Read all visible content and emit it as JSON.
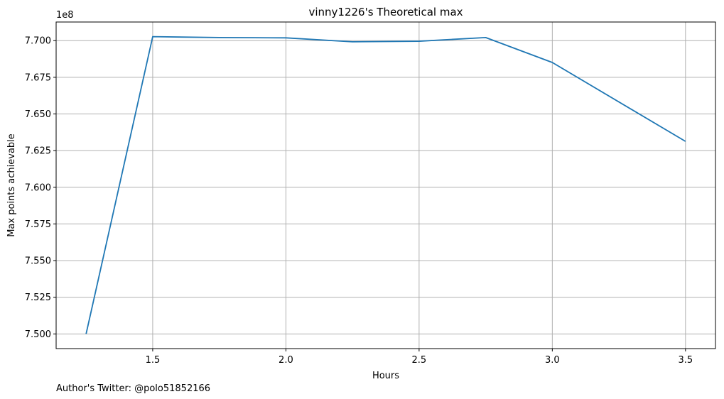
{
  "chart_data": {
    "type": "line",
    "title": "vinny1226's Theoretical max",
    "xlabel": "Hours",
    "ylabel": "Max points achievable",
    "y_offset_label": "1e8",
    "x_ticks": [
      "1.5",
      "2.0",
      "2.5",
      "3.0",
      "3.5"
    ],
    "x_tick_values": [
      1.5,
      2.0,
      2.5,
      3.0,
      3.5
    ],
    "y_ticks": [
      "7.500",
      "7.525",
      "7.550",
      "7.575",
      "7.600",
      "7.625",
      "7.650",
      "7.675",
      "7.700"
    ],
    "y_tick_values": [
      7.5,
      7.525,
      7.55,
      7.575,
      7.6,
      7.625,
      7.65,
      7.675,
      7.7
    ],
    "xlim": [
      1.1375,
      3.6125
    ],
    "ylim": [
      7.49,
      7.7127
    ],
    "grid": true,
    "line_color": "#1f77b4",
    "series": [
      {
        "x": [
          1.25,
          1.5,
          1.75,
          2.0,
          2.25,
          2.5,
          2.75,
          3.0,
          3.5
        ],
        "values": [
          7.5,
          7.7027,
          7.7021,
          7.7019,
          7.6992,
          7.6996,
          7.7021,
          7.6851,
          7.6313
        ]
      }
    ]
  },
  "footer_text": "Author's Twitter: @polo51852166"
}
